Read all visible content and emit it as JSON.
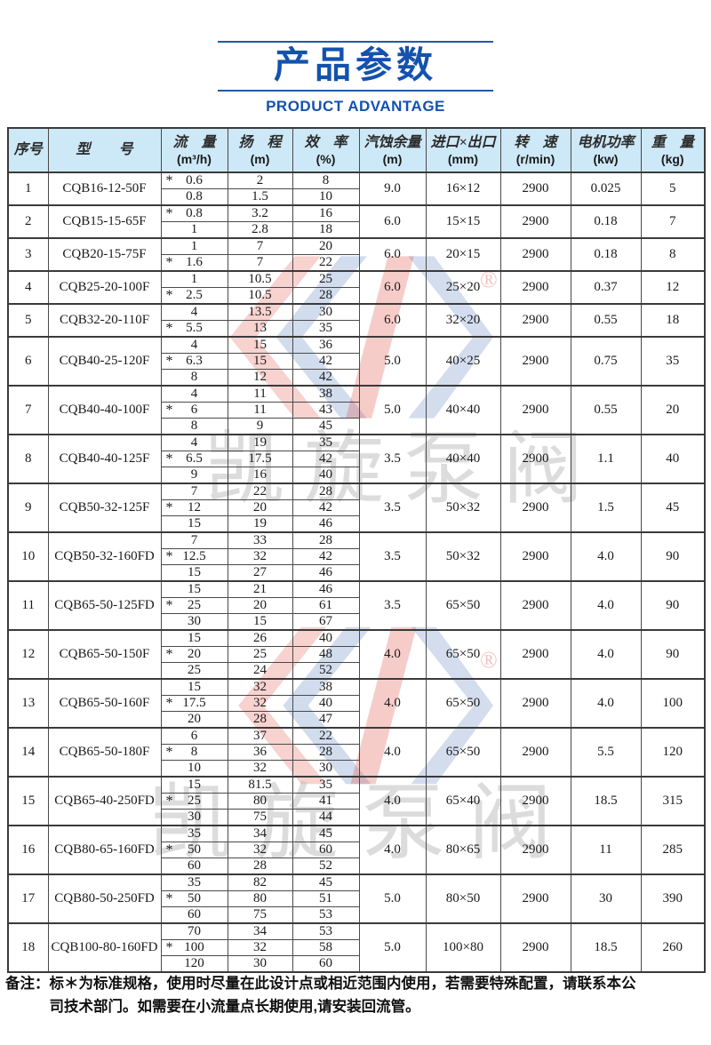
{
  "header": {
    "title": "产品参数",
    "subtitle": "PRODUCT ADVANTAGE"
  },
  "watermark": {
    "brand_text": "凯旋泵阀",
    "registered_mark": "®"
  },
  "table": {
    "star_symbol": "*",
    "columns": [
      {
        "label": "序号",
        "unit": ""
      },
      {
        "label": "型　　号",
        "unit": ""
      },
      {
        "label": "流　量",
        "unit": "(m³/h)"
      },
      {
        "label": "扬　程",
        "unit": "(m)"
      },
      {
        "label": "效　率",
        "unit": "(%)"
      },
      {
        "label": "汽蚀余量",
        "unit": "(m)"
      },
      {
        "label": "进口×出口",
        "unit": "(mm)"
      },
      {
        "label": "转　速",
        "unit": "(r/min)"
      },
      {
        "label": "电机功率",
        "unit": "(kw)"
      },
      {
        "label": "重　量",
        "unit": "(kg)"
      }
    ],
    "rows": [
      {
        "no": "1",
        "model": "CQB16-12-50F",
        "npsh": "9.0",
        "ports": "16×12",
        "speed": "2900",
        "power": "0.025",
        "weight": "5",
        "curves": [
          {
            "star": true,
            "flow": "0.6",
            "head": "2",
            "eff": "8"
          },
          {
            "star": false,
            "flow": "0.8",
            "head": "1.5",
            "eff": "10"
          }
        ]
      },
      {
        "no": "2",
        "model": "CQB15-15-65F",
        "npsh": "6.0",
        "ports": "15×15",
        "speed": "2900",
        "power": "0.18",
        "weight": "7",
        "curves": [
          {
            "star": true,
            "flow": "0.8",
            "head": "3.2",
            "eff": "16"
          },
          {
            "star": false,
            "flow": "1",
            "head": "2.8",
            "eff": "18"
          }
        ]
      },
      {
        "no": "3",
        "model": "CQB20-15-75F",
        "npsh": "6.0",
        "ports": "20×15",
        "speed": "2900",
        "power": "0.18",
        "weight": "8",
        "curves": [
          {
            "star": false,
            "flow": "1",
            "head": "7",
            "eff": "20"
          },
          {
            "star": true,
            "flow": "1.6",
            "head": "7",
            "eff": "22"
          }
        ]
      },
      {
        "no": "4",
        "model": "CQB25-20-100F",
        "npsh": "6.0",
        "ports": "25×20",
        "speed": "2900",
        "power": "0.37",
        "weight": "12",
        "curves": [
          {
            "star": false,
            "flow": "1",
            "head": "10.5",
            "eff": "25"
          },
          {
            "star": true,
            "flow": "2.5",
            "head": "10.5",
            "eff": "28"
          }
        ]
      },
      {
        "no": "5",
        "model": "CQB32-20-110F",
        "npsh": "6.0",
        "ports": "32×20",
        "speed": "2900",
        "power": "0.55",
        "weight": "18",
        "curves": [
          {
            "star": false,
            "flow": "4",
            "head": "13.5",
            "eff": "30"
          },
          {
            "star": true,
            "flow": "5.5",
            "head": "13",
            "eff": "35"
          }
        ]
      },
      {
        "no": "6",
        "model": "CQB40-25-120F",
        "npsh": "5.0",
        "ports": "40×25",
        "speed": "2900",
        "power": "0.75",
        "weight": "35",
        "curves": [
          {
            "star": false,
            "flow": "4",
            "head": "15",
            "eff": "36"
          },
          {
            "star": true,
            "flow": "6.3",
            "head": "15",
            "eff": "42"
          },
          {
            "star": false,
            "flow": "8",
            "head": "12",
            "eff": "42"
          }
        ]
      },
      {
        "no": "7",
        "model": "CQB40-40-100F",
        "npsh": "5.0",
        "ports": "40×40",
        "speed": "2900",
        "power": "0.55",
        "weight": "20",
        "curves": [
          {
            "star": false,
            "flow": "4",
            "head": "11",
            "eff": "38"
          },
          {
            "star": true,
            "flow": "6",
            "head": "11",
            "eff": "43"
          },
          {
            "star": false,
            "flow": "8",
            "head": "9",
            "eff": "45"
          }
        ]
      },
      {
        "no": "8",
        "model": "CQB40-40-125F",
        "npsh": "3.5",
        "ports": "40×40",
        "speed": "2900",
        "power": "1.1",
        "weight": "40",
        "curves": [
          {
            "star": false,
            "flow": "4",
            "head": "19",
            "eff": "35"
          },
          {
            "star": true,
            "flow": "6.5",
            "head": "17.5",
            "eff": "42"
          },
          {
            "star": false,
            "flow": "9",
            "head": "16",
            "eff": "40"
          }
        ]
      },
      {
        "no": "9",
        "model": "CQB50-32-125F",
        "npsh": "3.5",
        "ports": "50×32",
        "speed": "2900",
        "power": "1.5",
        "weight": "45",
        "curves": [
          {
            "star": false,
            "flow": "7",
            "head": "22",
            "eff": "28"
          },
          {
            "star": true,
            "flow": "12",
            "head": "20",
            "eff": "42"
          },
          {
            "star": false,
            "flow": "15",
            "head": "19",
            "eff": "46"
          }
        ]
      },
      {
        "no": "10",
        "model": "CQB50-32-160FD",
        "npsh": "3.5",
        "ports": "50×32",
        "speed": "2900",
        "power": "4.0",
        "weight": "90",
        "curves": [
          {
            "star": false,
            "flow": "7",
            "head": "33",
            "eff": "28"
          },
          {
            "star": true,
            "flow": "12.5",
            "head": "32",
            "eff": "42"
          },
          {
            "star": false,
            "flow": "15",
            "head": "27",
            "eff": "46"
          }
        ]
      },
      {
        "no": "11",
        "model": "CQB65-50-125FD",
        "npsh": "3.5",
        "ports": "65×50",
        "speed": "2900",
        "power": "4.0",
        "weight": "90",
        "curves": [
          {
            "star": false,
            "flow": "15",
            "head": "21",
            "eff": "46"
          },
          {
            "star": true,
            "flow": "25",
            "head": "20",
            "eff": "61"
          },
          {
            "star": false,
            "flow": "30",
            "head": "15",
            "eff": "67"
          }
        ]
      },
      {
        "no": "12",
        "model": "CQB65-50-150F",
        "npsh": "4.0",
        "ports": "65×50",
        "speed": "2900",
        "power": "4.0",
        "weight": "90",
        "curves": [
          {
            "star": false,
            "flow": "15",
            "head": "26",
            "eff": "40"
          },
          {
            "star": true,
            "flow": "20",
            "head": "25",
            "eff": "48"
          },
          {
            "star": false,
            "flow": "25",
            "head": "24",
            "eff": "52"
          }
        ]
      },
      {
        "no": "13",
        "model": "CQB65-50-160F",
        "npsh": "4.0",
        "ports": "65×50",
        "speed": "2900",
        "power": "4.0",
        "weight": "100",
        "curves": [
          {
            "star": false,
            "flow": "15",
            "head": "32",
            "eff": "38"
          },
          {
            "star": true,
            "flow": "17.5",
            "head": "32",
            "eff": "40"
          },
          {
            "star": false,
            "flow": "20",
            "head": "28",
            "eff": "47"
          }
        ]
      },
      {
        "no": "14",
        "model": "CQB65-50-180F",
        "npsh": "4.0",
        "ports": "65×50",
        "speed": "2900",
        "power": "5.5",
        "weight": "120",
        "curves": [
          {
            "star": false,
            "flow": "6",
            "head": "37",
            "eff": "22"
          },
          {
            "star": true,
            "flow": "8",
            "head": "36",
            "eff": "28"
          },
          {
            "star": false,
            "flow": "10",
            "head": "32",
            "eff": "30"
          }
        ]
      },
      {
        "no": "15",
        "model": "CQB65-40-250FD",
        "npsh": "4.0",
        "ports": "65×40",
        "speed": "2900",
        "power": "18.5",
        "weight": "315",
        "curves": [
          {
            "star": false,
            "flow": "15",
            "head": "81.5",
            "eff": "35"
          },
          {
            "star": true,
            "flow": "25",
            "head": "80",
            "eff": "41"
          },
          {
            "star": false,
            "flow": "30",
            "head": "75",
            "eff": "44"
          }
        ]
      },
      {
        "no": "16",
        "model": "CQB80-65-160FD",
        "npsh": "4.0",
        "ports": "80×65",
        "speed": "2900",
        "power": "11",
        "weight": "285",
        "curves": [
          {
            "star": false,
            "flow": "35",
            "head": "34",
            "eff": "45"
          },
          {
            "star": true,
            "flow": "50",
            "head": "32",
            "eff": "60"
          },
          {
            "star": false,
            "flow": "60",
            "head": "28",
            "eff": "52"
          }
        ]
      },
      {
        "no": "17",
        "model": "CQB80-50-250FD",
        "npsh": "5.0",
        "ports": "80×50",
        "speed": "2900",
        "power": "30",
        "weight": "390",
        "curves": [
          {
            "star": false,
            "flow": "35",
            "head": "82",
            "eff": "45"
          },
          {
            "star": true,
            "flow": "50",
            "head": "80",
            "eff": "51"
          },
          {
            "star": false,
            "flow": "60",
            "head": "75",
            "eff": "53"
          }
        ]
      },
      {
        "no": "18",
        "model": "CQB100-80-160FD",
        "npsh": "5.0",
        "ports": "100×80",
        "speed": "2900",
        "power": "18.5",
        "weight": "260",
        "curves": [
          {
            "star": false,
            "flow": "70",
            "head": "34",
            "eff": "53"
          },
          {
            "star": true,
            "flow": "100",
            "head": "32",
            "eff": "58"
          },
          {
            "star": false,
            "flow": "120",
            "head": "30",
            "eff": "60"
          }
        ]
      }
    ]
  },
  "note": {
    "label": "备注：",
    "line1": "标＊为标准规格，使用时尽量在此设计点或相近范围内使用，若需要特殊配置，请联系本公",
    "line2": "司技术部门。如需要在小流量点长期使用,请安装回流管。"
  },
  "colors": {
    "title_blue": "#1352ae",
    "header_bg": "#cde8f6",
    "border_dark": "#3a3a3a",
    "watermark_red": "#e2574c",
    "watermark_blue": "#3a66b0"
  }
}
